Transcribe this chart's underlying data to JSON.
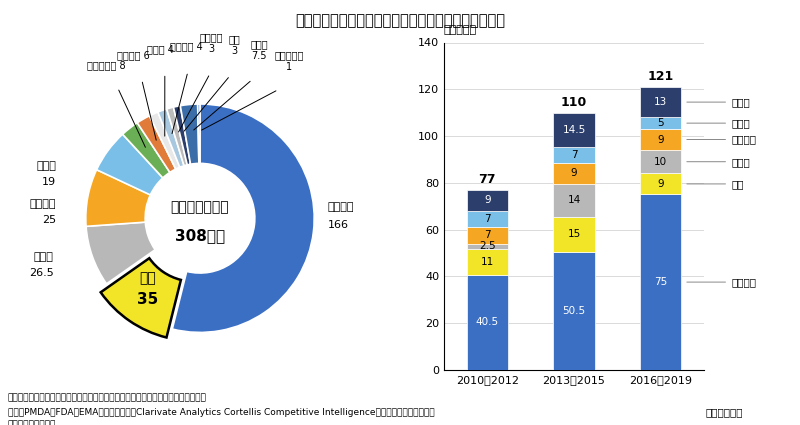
{
  "title": "図４　グローバル承認品目の創出企業国籍と年次推移",
  "donut": {
    "labels": [
      "アメリカ",
      "日本",
      "スイス",
      "イギリス",
      "ドイツ",
      "デンマーク",
      "イタリア",
      "カナダ",
      "フランス",
      "ベルギー",
      "韓国",
      "その他",
      "特定できず"
    ],
    "values": [
      166,
      35,
      26.5,
      25,
      19,
      8,
      6,
      4,
      4,
      3,
      3,
      7.5,
      1
    ],
    "colors": [
      "#3A6FC4",
      "#F2E528",
      "#B8B8B8",
      "#F5A623",
      "#7ABFE8",
      "#6AAF55",
      "#E07B3A",
      "#E8E8E8",
      "#A8C8E0",
      "#BBBBBB",
      "#2C3E6B",
      "#3B6DA8",
      "#5A88C8"
    ],
    "explode_idx": 1,
    "center_text1": "グローバル承認",
    "center_text2": "308品目"
  },
  "bar": {
    "categories": [
      "2010～2012",
      "2013～2015",
      "2016～2019"
    ],
    "xlabel_suffix": "（初承認年）",
    "ylabel": "（品目数）",
    "ylim": [
      0,
      140
    ],
    "yticks": [
      0,
      20,
      40,
      60,
      80,
      100,
      120,
      140
    ],
    "totals": [
      77,
      110,
      121
    ],
    "series_order": [
      "アメリカ",
      "日本",
      "スイス",
      "イギリス",
      "ドイツ",
      "その他"
    ],
    "series": {
      "アメリカ": {
        "values": [
          40.5,
          50.5,
          75
        ],
        "color": "#3A6FC4"
      },
      "日本": {
        "values": [
          11,
          15,
          9
        ],
        "color": "#F2E528"
      },
      "スイス": {
        "values": [
          2.5,
          14,
          10
        ],
        "color": "#B8B8B8"
      },
      "イギリス": {
        "values": [
          7,
          9,
          9
        ],
        "color": "#F5A623"
      },
      "ドイツ": {
        "values": [
          7,
          7,
          5
        ],
        "color": "#7ABFE8"
      },
      "その他": {
        "values": [
          9,
          14.5,
          13
        ],
        "color": "#2C3E6B"
      }
    }
  },
  "note1": "注：出願人として複数の企業・機関が記されている場合、国籍別に均等割している",
  "note2": "出所：PMDA、FDA、EMAの各公開情報、Clarivate Analytics Cortellis Competitive Intelligenceをもとに医薬産業政策研",
  "note3": "　　　究所にて作成",
  "bg_color": "#FFFFFF"
}
